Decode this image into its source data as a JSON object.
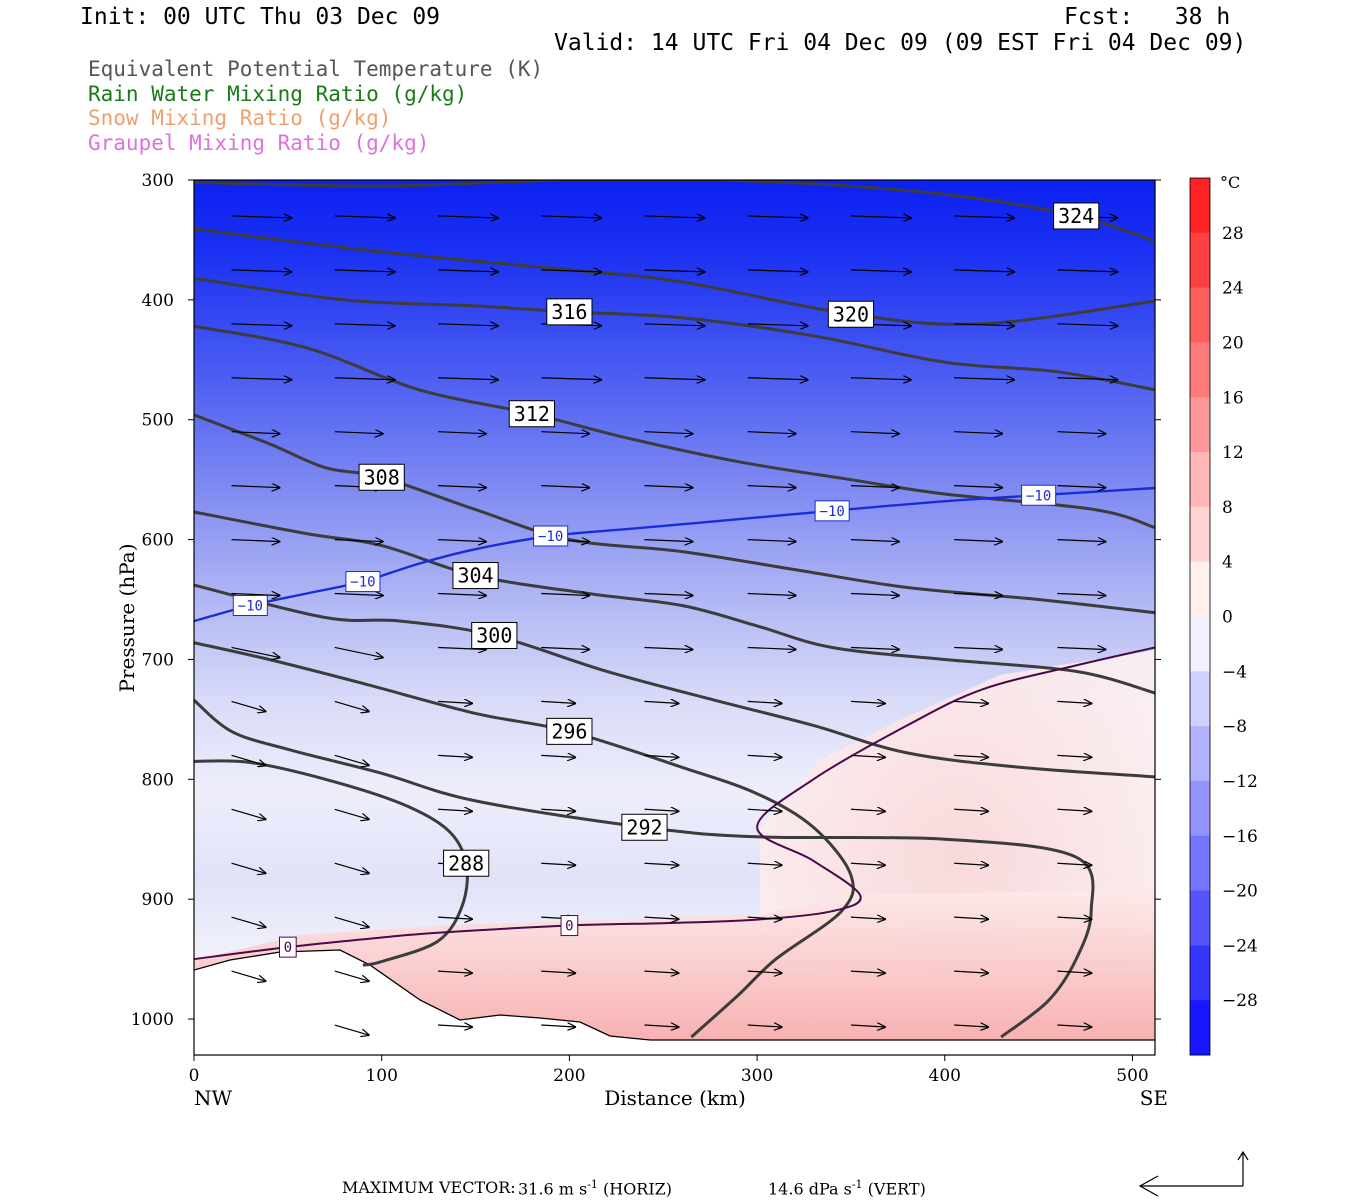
{
  "header": {
    "init": "Init: 00 UTC Thu 03 Dec 09",
    "fcst": "Fcst:   38 h",
    "valid": "Valid: 14 UTC Fri 04 Dec 09 (09 EST Fri 04 Dec 09)"
  },
  "fields": [
    {
      "label": "Equivalent Potential Temperature (K)",
      "color": "#555555"
    },
    {
      "label": "Rain Water Mixing Ratio (g/kg)",
      "color": "#1a7a1a"
    },
    {
      "label": "Snow Mixing Ratio (g/kg)",
      "color": "#f0a070"
    },
    {
      "label": "Graupel Mixing Ratio (g/kg)",
      "color": "#e070e0"
    }
  ],
  "footer": {
    "max_vector_label": "MAXIMUM VECTOR:",
    "horiz": "31.6 m s",
    "horiz_suffix": " (HORIZ)",
    "vert": "14.6 dPa s",
    "vert_suffix": " (VERT)",
    "exponent": "-1"
  },
  "chart_data": {
    "type": "cross-section",
    "xlabel": "Distance (km)",
    "ylabel": "Pressure (hPa)",
    "xlim": [
      0,
      512
    ],
    "ylim": [
      1030,
      300
    ],
    "x_ticks": [
      0,
      100,
      200,
      300,
      400,
      500
    ],
    "y_ticks": [
      300,
      400,
      500,
      600,
      700,
      800,
      900,
      1000
    ],
    "x_end_labels": {
      "left": "NW",
      "right": "SE"
    },
    "colorbar": {
      "unit": "°C",
      "tick_labels": [
        "28",
        "24",
        "20",
        "16",
        "12",
        "8",
        "4",
        "0",
        "−4",
        "−8",
        "−12",
        "−16",
        "−20",
        "−24",
        "−28"
      ],
      "min": -32,
      "max": 32,
      "step": 4
    },
    "theta_e_contours": [
      {
        "label": "324",
        "points": [
          [
            0,
            302
          ],
          [
            100,
            305
          ],
          [
            200,
            300
          ],
          [
            300,
            301
          ],
          [
            400,
            312
          ],
          [
            470,
            330
          ],
          [
            512,
            351
          ]
        ]
      },
      {
        "label": "320",
        "points": [
          [
            0,
            341
          ],
          [
            100,
            360
          ],
          [
            200,
            375
          ],
          [
            260,
            385
          ],
          [
            350,
            412
          ],
          [
            420,
            420
          ],
          [
            512,
            401
          ]
        ]
      },
      {
        "label": "316",
        "points": [
          [
            0,
            382
          ],
          [
            80,
            400
          ],
          [
            150,
            405
          ],
          [
            200,
            410
          ],
          [
            260,
            415
          ],
          [
            330,
            430
          ],
          [
            400,
            452
          ],
          [
            460,
            460
          ],
          [
            512,
            475
          ]
        ]
      },
      {
        "label": "312",
        "points": [
          [
            0,
            422
          ],
          [
            60,
            440
          ],
          [
            120,
            475
          ],
          [
            180,
            495
          ],
          [
            230,
            515
          ],
          [
            290,
            535
          ],
          [
            350,
            550
          ],
          [
            400,
            562
          ],
          [
            480,
            575
          ],
          [
            512,
            590
          ]
        ]
      },
      {
        "label": "308",
        "points": [
          [
            0,
            496
          ],
          [
            40,
            520
          ],
          [
            70,
            540
          ],
          [
            100,
            548
          ],
          [
            150,
            575
          ],
          [
            200,
            600
          ],
          [
            260,
            610
          ],
          [
            320,
            625
          ],
          [
            380,
            640
          ],
          [
            450,
            650
          ],
          [
            512,
            661
          ]
        ]
      },
      {
        "label": "304",
        "points": [
          [
            0,
            577
          ],
          [
            60,
            595
          ],
          [
            100,
            605
          ],
          [
            150,
            630
          ],
          [
            210,
            645
          ],
          [
            260,
            655
          ],
          [
            300,
            672
          ],
          [
            340,
            690
          ],
          [
            400,
            700
          ],
          [
            470,
            710
          ],
          [
            512,
            728
          ]
        ]
      },
      {
        "label": "300",
        "points": [
          [
            0,
            638
          ],
          [
            70,
            665
          ],
          [
            110,
            668
          ],
          [
            160,
            680
          ],
          [
            220,
            710
          ],
          [
            280,
            735
          ],
          [
            330,
            755
          ],
          [
            380,
            778
          ],
          [
            440,
            790
          ],
          [
            512,
            798
          ]
        ]
      },
      {
        "label": "296",
        "points": [
          [
            0,
            686
          ],
          [
            40,
            700
          ],
          [
            90,
            720
          ],
          [
            150,
            745
          ],
          [
            200,
            760
          ],
          [
            260,
            790
          ],
          [
            300,
            812
          ],
          [
            330,
            840
          ],
          [
            350,
            880
          ],
          [
            345,
            910
          ],
          [
            310,
            950
          ],
          [
            290,
            980
          ],
          [
            265,
            1015
          ]
        ]
      },
      {
        "label": "292",
        "points": [
          [
            0,
            734
          ],
          [
            20,
            760
          ],
          [
            50,
            775
          ],
          [
            100,
            795
          ],
          [
            150,
            818
          ],
          [
            240,
            840
          ],
          [
            300,
            848
          ],
          [
            400,
            850
          ],
          [
            470,
            865
          ],
          [
            478,
            910
          ],
          [
            470,
            950
          ],
          [
            455,
            985
          ],
          [
            430,
            1015
          ]
        ]
      },
      {
        "label": "288",
        "points": [
          [
            0,
            785
          ],
          [
            30,
            786
          ],
          [
            70,
            800
          ],
          [
            110,
            820
          ],
          [
            135,
            842
          ],
          [
            145,
            870
          ],
          [
            143,
            905
          ],
          [
            130,
            935
          ],
          [
            100,
            952
          ],
          [
            90,
            955
          ]
        ]
      }
    ],
    "isotherms": [
      {
        "label": "−10",
        "points": [
          [
            0,
            668
          ],
          [
            30,
            655
          ],
          [
            60,
            645
          ],
          [
            90,
            635
          ],
          [
            120,
            620
          ],
          [
            150,
            608
          ],
          [
            190,
            597
          ],
          [
            240,
            590
          ],
          [
            290,
            583
          ],
          [
            340,
            576
          ],
          [
            400,
            568
          ],
          [
            450,
            563
          ],
          [
            512,
            557
          ]
        ]
      },
      {
        "label": "0",
        "points": [
          [
            0,
            950
          ],
          [
            50,
            940
          ],
          [
            100,
            932
          ],
          [
            130,
            928
          ],
          [
            200,
            922
          ],
          [
            250,
            920
          ],
          [
            300,
            917
          ],
          [
            340,
            910
          ],
          [
            355,
            897
          ],
          [
            330,
            868
          ],
          [
            300,
            840
          ],
          [
            330,
            800
          ],
          [
            380,
            755
          ],
          [
            420,
            725
          ],
          [
            470,
            705
          ],
          [
            512,
            690
          ]
        ]
      }
    ]
  }
}
